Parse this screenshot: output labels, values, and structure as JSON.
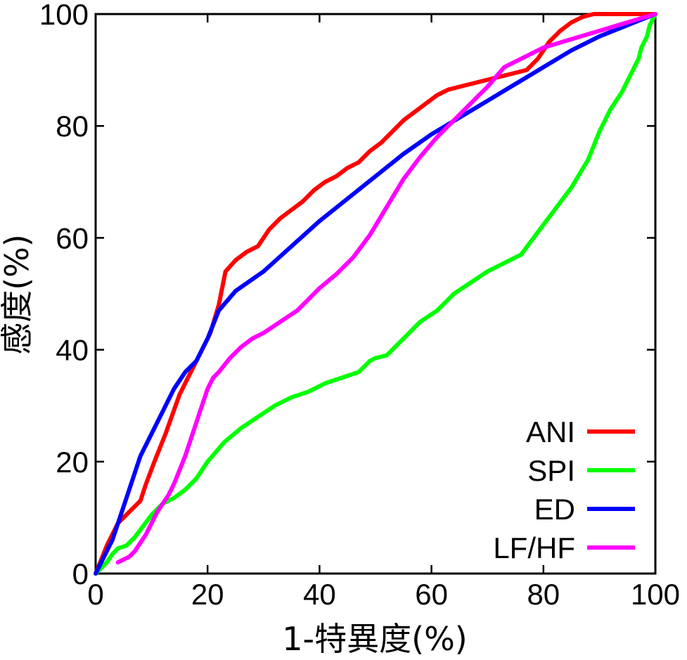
{
  "chart_data": {
    "type": "line",
    "title": "",
    "xlabel": "1-特異度(%)",
    "ylabel": "感度(%)",
    "xlim": [
      0,
      100
    ],
    "ylim": [
      0,
      100
    ],
    "xticks": [
      0,
      20,
      40,
      60,
      80,
      100
    ],
    "yticks": [
      0,
      20,
      40,
      60,
      80,
      100
    ],
    "xtick_labels": [
      "0",
      "20",
      "40",
      "60",
      "80",
      "100"
    ],
    "ytick_labels": [
      "0",
      "20",
      "40",
      "60",
      "80",
      "100"
    ],
    "grid": false,
    "legend_position": "bottom-right",
    "series": [
      {
        "name": "ANI",
        "color": "#ff0000",
        "x": [
          0,
          0.8,
          2,
          4,
          6,
          8,
          9,
          10.5,
          12.5,
          15,
          18,
          20.5,
          22,
          23.2,
          25,
          27,
          29,
          31,
          33,
          35,
          37,
          39,
          41,
          43,
          45,
          47,
          49,
          51,
          53,
          55,
          57,
          59,
          61,
          63,
          65,
          67,
          69,
          71,
          73,
          75,
          77,
          79,
          81,
          83,
          85,
          87,
          89,
          91,
          93,
          95,
          97,
          100
        ],
        "y": [
          0,
          2,
          5,
          9,
          11,
          13,
          16,
          20,
          25,
          32,
          38,
          43,
          48,
          54,
          56,
          57.5,
          58.5,
          61.5,
          63.5,
          65,
          66.5,
          68.5,
          70,
          71,
          72.5,
          73.5,
          75.5,
          77,
          79,
          81,
          82.5,
          84,
          85.5,
          86.5,
          87,
          87.5,
          88,
          88.5,
          89,
          89.5,
          90,
          92,
          95,
          97,
          98.5,
          99.5,
          100,
          100,
          100,
          100,
          100,
          100
        ]
      },
      {
        "name": "SPI",
        "color": "#00ff00",
        "x": [
          0,
          1,
          2,
          3,
          4,
          5.5,
          7,
          8.5,
          10,
          12,
          14,
          16,
          18,
          20,
          23,
          26,
          29,
          32,
          35,
          38,
          41,
          44,
          47,
          49,
          50,
          52,
          55,
          58,
          61,
          64,
          67,
          70,
          73,
          76,
          79,
          82,
          85,
          88,
          90,
          92,
          94,
          95,
          96,
          97,
          97.5,
          98,
          98.5,
          99,
          100
        ],
        "y": [
          0,
          1,
          2,
          3.5,
          4.5,
          5,
          6.5,
          8.5,
          10.5,
          12.5,
          13.5,
          15,
          17,
          20,
          23.5,
          26,
          28,
          30,
          31.5,
          32.5,
          34,
          35,
          36,
          38,
          38.5,
          39,
          42,
          45,
          47,
          50,
          52,
          54,
          55.5,
          57,
          61,
          65,
          69,
          74,
          79,
          83,
          86,
          88,
          90,
          92,
          94,
          95,
          96,
          98,
          100
        ]
      },
      {
        "name": "ED",
        "color": "#0000ff",
        "x": [
          0,
          1,
          2,
          3,
          4,
          5,
          6,
          7,
          8,
          10,
          12,
          14,
          16,
          18,
          20,
          22,
          25,
          30,
          35,
          40,
          45,
          50,
          55,
          60,
          65,
          70,
          75,
          80,
          85,
          90,
          95,
          100
        ],
        "y": [
          0,
          2,
          4,
          6,
          9,
          12,
          15,
          18,
          21,
          25,
          29,
          33,
          36,
          38,
          42,
          47,
          50.5,
          54,
          58.5,
          63,
          67,
          71,
          75,
          78.5,
          81.5,
          84.5,
          87.5,
          90.5,
          93.5,
          96,
          98,
          100
        ]
      },
      {
        "name": "LF/HF",
        "color": "#ff00ff",
        "x": [
          4,
          5,
          6,
          7,
          8,
          9,
          10,
          11,
          12,
          13,
          14,
          15,
          16,
          17,
          18,
          19,
          20,
          21,
          22,
          24,
          26,
          28,
          30,
          33,
          36,
          38,
          40,
          43,
          46,
          49,
          52,
          55,
          58,
          61,
          64,
          67,
          70,
          73,
          76,
          80,
          85,
          90,
          95,
          100
        ],
        "y": [
          2,
          2.5,
          3,
          4,
          5.5,
          7,
          9,
          11,
          12.5,
          14,
          16,
          18.5,
          21,
          24,
          27,
          30,
          33,
          35,
          36,
          38.5,
          40.5,
          42,
          43,
          45,
          47,
          49,
          51,
          53.5,
          56.5,
          60.5,
          65.5,
          70.5,
          74.5,
          78,
          81,
          84,
          87,
          90.5,
          92,
          94,
          95.5,
          97,
          98.5,
          100
        ]
      }
    ]
  }
}
